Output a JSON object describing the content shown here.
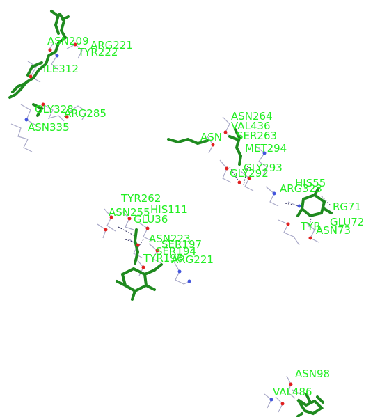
{
  "viewer": {
    "background": "#ffffff",
    "ligand_color": "#1f8a1f",
    "label_color": "#22ee22",
    "residue_color": "#a9a9c8",
    "oxygen_color": "#e02020",
    "nitrogen_color": "#4455dd",
    "hbond_color": "#303060"
  },
  "labels": [
    {
      "id": "asn209",
      "text": "ASN209"
    },
    {
      "id": "arg221a",
      "text": "ARG221"
    },
    {
      "id": "tyr222",
      "text": "TYR222"
    },
    {
      "id": "ile312",
      "text": "ILE312"
    },
    {
      "id": "gly328",
      "text": "GLY328"
    },
    {
      "id": "arg285",
      "text": "ARG285"
    },
    {
      "id": "asn335",
      "text": "ASN335"
    },
    {
      "id": "asn264",
      "text": "ASN264"
    },
    {
      "id": "val436",
      "text": "VAL436"
    },
    {
      "id": "asn",
      "text": "ASN"
    },
    {
      "id": "ser263",
      "text": "SER263"
    },
    {
      "id": "met294",
      "text": "MET294"
    },
    {
      "id": "gly293",
      "text": "GLY293"
    },
    {
      "id": "gly292",
      "text": "GLY292"
    },
    {
      "id": "his55",
      "text": "HIS55"
    },
    {
      "id": "arg323",
      "text": "ARG323"
    },
    {
      "id": "arg71",
      "text": "RG71"
    },
    {
      "id": "glu72",
      "text": "GLU72"
    },
    {
      "id": "tyr",
      "text": "TYR"
    },
    {
      "id": "asn73",
      "text": "ASN73"
    },
    {
      "id": "tyr262",
      "text": "TYR262"
    },
    {
      "id": "his111",
      "text": "HIS111"
    },
    {
      "id": "asn255",
      "text": "ASN255"
    },
    {
      "id": "glu36",
      "text": "GLU36"
    },
    {
      "id": "asn223",
      "text": "ASN223"
    },
    {
      "id": "ser197",
      "text": "SER197"
    },
    {
      "id": "ser194",
      "text": "SER194"
    },
    {
      "id": "tyr196",
      "text": "TYR196"
    },
    {
      "id": "arg221b",
      "text": "ARG221"
    },
    {
      "id": "asn98",
      "text": "ASN98"
    },
    {
      "id": "val486",
      "text": "VAL486"
    }
  ]
}
